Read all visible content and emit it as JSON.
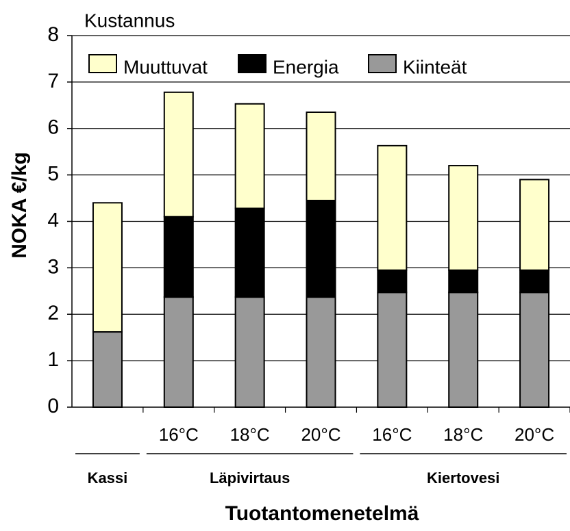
{
  "chart_data": {
    "type": "stacked_bar",
    "ylabel": "NOKA €/kg",
    "xlabel": "Tuotantomenetelmä",
    "legend_title": "Kustannus",
    "categories": [
      null,
      "16°C",
      "18°C",
      "20°C",
      "16°C",
      "18°C",
      "20°C"
    ],
    "groups": [
      "Kassi",
      "Läpivirtaus",
      "Kiertovesi"
    ],
    "series": [
      {
        "name": "Kiinteät",
        "color": "#999999",
        "values": [
          1.62,
          2.37,
          2.37,
          2.37,
          2.47,
          2.47,
          2.47
        ]
      },
      {
        "name": "Energia",
        "color": "#000000",
        "values": [
          0,
          1.73,
          1.91,
          2.08,
          0.48,
          0.48,
          0.48
        ]
      },
      {
        "name": "Muuttuvat",
        "color": "#ffffcc",
        "values": [
          2.78,
          2.68,
          2.25,
          1.9,
          2.68,
          2.25,
          1.95
        ]
      }
    ],
    "ylim": [
      0,
      8
    ],
    "yticks": [
      0,
      1,
      2,
      3,
      4,
      5,
      6,
      7,
      8
    ],
    "grid": true
  }
}
